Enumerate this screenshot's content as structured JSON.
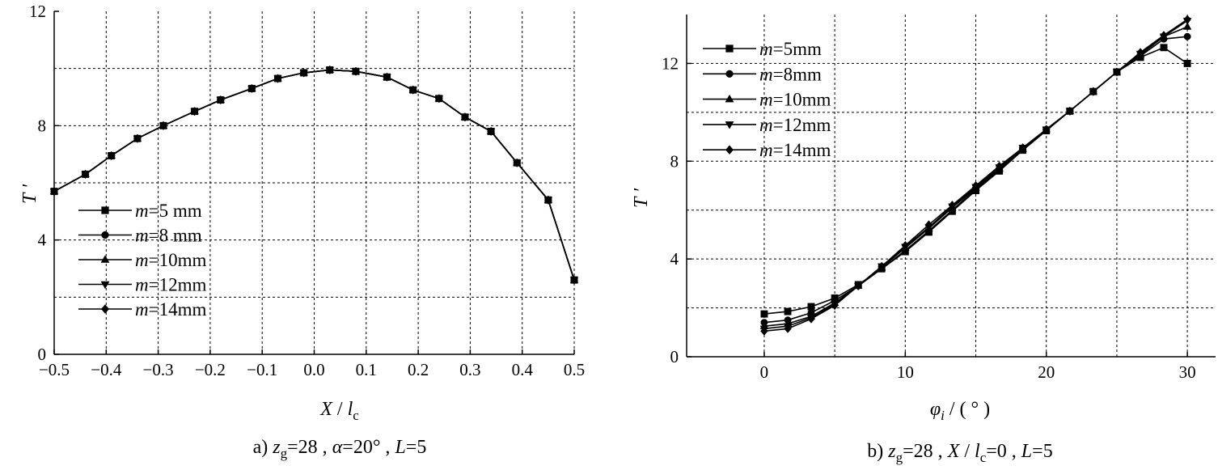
{
  "chart_data": [
    {
      "id": "a",
      "type": "line",
      "caption": {
        "prefix": "a) ",
        "z": "z",
        "sub": "g",
        "rest1": "=28 , ",
        "alpha": "α",
        "rest2": "=20° , ",
        "L": "L",
        "rest3": "=5"
      },
      "xlabel": {
        "var": "X",
        "sep": " / ",
        "den": "l",
        "sub": "c"
      },
      "ylabel": "T ′",
      "xlim": [
        -0.5,
        0.5
      ],
      "ylim": [
        0,
        12
      ],
      "xticks": [
        -0.5,
        -0.4,
        -0.3,
        -0.2,
        -0.1,
        0.0,
        0.1,
        0.2,
        0.3,
        0.4,
        0.5
      ],
      "xtick_labels": [
        "−0.5",
        "−0.4",
        "−0.3",
        "−0.2",
        "−0.1",
        "0.0",
        "0.1",
        "0.2",
        "0.3",
        "0.4",
        "0.5"
      ],
      "yticks": [
        0,
        4,
        8,
        12
      ],
      "ytick_labels": [
        "0",
        "4",
        "8",
        "12"
      ],
      "ygrid": [
        2,
        4,
        6,
        8,
        10
      ],
      "legend_position": "lower-left",
      "series": [
        {
          "name": "m=5mm",
          "m": "m",
          "label": "=5 mm",
          "marker": "square",
          "x": [
            -0.5,
            -0.44,
            -0.39,
            -0.34,
            -0.29,
            -0.23,
            -0.18,
            -0.12,
            -0.07,
            -0.02,
            0.03,
            0.08,
            0.14,
            0.19,
            0.24,
            0.29,
            0.34,
            0.39,
            0.45,
            0.5
          ],
          "y": [
            5.7,
            6.3,
            6.95,
            7.55,
            8.0,
            8.5,
            8.9,
            9.3,
            9.65,
            9.85,
            9.95,
            9.9,
            9.7,
            9.25,
            8.95,
            8.3,
            7.8,
            6.7,
            5.4,
            2.6
          ]
        },
        {
          "name": "m=8mm",
          "m": "m",
          "label": "=8 mm",
          "marker": "circle",
          "x": [
            -0.5,
            -0.44,
            -0.39,
            -0.34,
            -0.29,
            -0.23,
            -0.18,
            -0.12,
            -0.07,
            -0.02,
            0.03,
            0.08,
            0.14,
            0.19,
            0.24,
            0.29,
            0.34,
            0.39,
            0.45,
            0.5
          ],
          "y": [
            5.7,
            6.3,
            6.95,
            7.55,
            8.0,
            8.5,
            8.9,
            9.3,
            9.65,
            9.85,
            9.95,
            9.9,
            9.7,
            9.25,
            8.95,
            8.3,
            7.8,
            6.7,
            5.4,
            2.6
          ]
        },
        {
          "name": "m=10mm",
          "m": "m",
          "label": "=10mm",
          "marker": "triangle-up",
          "x": [
            -0.5,
            -0.44,
            -0.39,
            -0.34,
            -0.29,
            -0.23,
            -0.18,
            -0.12,
            -0.07,
            -0.02,
            0.03,
            0.08,
            0.14,
            0.19,
            0.24,
            0.29,
            0.34,
            0.39,
            0.45,
            0.5
          ],
          "y": [
            5.7,
            6.3,
            6.95,
            7.55,
            8.0,
            8.5,
            8.9,
            9.3,
            9.65,
            9.85,
            9.95,
            9.9,
            9.7,
            9.25,
            8.95,
            8.3,
            7.8,
            6.7,
            5.4,
            2.6
          ]
        },
        {
          "name": "m=12mm",
          "m": "m",
          "label": "=12mm",
          "marker": "triangle-down",
          "x": [
            -0.5,
            -0.44,
            -0.39,
            -0.34,
            -0.29,
            -0.23,
            -0.18,
            -0.12,
            -0.07,
            -0.02,
            0.03,
            0.08,
            0.14,
            0.19,
            0.24,
            0.29,
            0.34,
            0.39,
            0.45,
            0.5
          ],
          "y": [
            5.7,
            6.3,
            6.95,
            7.55,
            8.0,
            8.5,
            8.9,
            9.3,
            9.65,
            9.85,
            9.95,
            9.9,
            9.7,
            9.25,
            8.95,
            8.3,
            7.8,
            6.7,
            5.4,
            2.6
          ]
        },
        {
          "name": "m=14mm",
          "m": "m",
          "label": "=14mm",
          "marker": "diamond",
          "x": [
            -0.5,
            -0.44,
            -0.39,
            -0.34,
            -0.29,
            -0.23,
            -0.18,
            -0.12,
            -0.07,
            -0.02,
            0.03,
            0.08,
            0.14,
            0.19,
            0.24,
            0.29,
            0.34,
            0.39,
            0.45,
            0.5
          ],
          "y": [
            5.7,
            6.3,
            6.95,
            7.55,
            8.0,
            8.5,
            8.9,
            9.3,
            9.65,
            9.85,
            9.95,
            9.9,
            9.7,
            9.25,
            8.95,
            8.3,
            7.8,
            6.7,
            5.4,
            2.6
          ]
        }
      ]
    },
    {
      "id": "b",
      "type": "line",
      "caption": {
        "prefix": "b) ",
        "z": "z",
        "sub": "g",
        "rest1": "=28 , ",
        "X": "X",
        "sep": " / ",
        "l": "l",
        "sub2": "c",
        "rest2": "=0 , ",
        "L": "L",
        "rest3": "=5"
      },
      "xlabel": {
        "var": "φ",
        "sub": "i",
        "rest": " / ( ° )"
      },
      "ylabel": "T ′",
      "xlim": [
        -5.5,
        32
      ],
      "ylim": [
        0,
        14
      ],
      "xticks": [
        0,
        10,
        20,
        30
      ],
      "xtick_labels": [
        "0",
        "10",
        "20",
        "30"
      ],
      "yticks": [
        0,
        4,
        8,
        12
      ],
      "ytick_labels": [
        "0",
        "4",
        "8",
        "12"
      ],
      "xgrid": [
        0,
        5,
        10,
        15,
        20,
        25,
        30
      ],
      "ygrid": [
        2,
        4,
        6,
        8,
        10,
        12
      ],
      "legend_position": "top-left",
      "series": [
        {
          "name": "m=5mm",
          "m": "m",
          "label": "=5mm",
          "marker": "square",
          "x": [
            0,
            1.67,
            3.33,
            5,
            6.67,
            8.33,
            10,
            11.67,
            13.33,
            15,
            16.67,
            18.33,
            20,
            21.67,
            23.33,
            25,
            26.67,
            28.33,
            30
          ],
          "y": [
            1.75,
            1.85,
            2.05,
            2.4,
            2.95,
            3.6,
            4.3,
            5.1,
            5.95,
            6.8,
            7.6,
            8.45,
            9.25,
            10.05,
            10.85,
            11.65,
            12.25,
            12.65,
            12.0
          ]
        },
        {
          "name": "m=8mm",
          "m": "m",
          "label": "=8mm",
          "marker": "circle",
          "x": [
            0,
            1.67,
            3.33,
            5,
            6.67,
            8.33,
            10,
            11.67,
            13.33,
            15,
            16.67,
            18.33,
            20,
            21.67,
            23.33,
            25,
            26.67,
            28.33,
            30
          ],
          "y": [
            1.4,
            1.5,
            1.8,
            2.3,
            2.9,
            3.6,
            4.35,
            5.15,
            6.0,
            6.85,
            7.65,
            8.5,
            9.3,
            10.05,
            10.85,
            11.65,
            12.3,
            13.0,
            13.1
          ]
        },
        {
          "name": "m=10mm",
          "m": "m",
          "label": "=10mm",
          "marker": "triangle-up",
          "x": [
            0,
            1.67,
            3.33,
            5,
            6.67,
            8.33,
            10,
            11.67,
            13.33,
            15,
            16.67,
            18.33,
            20,
            21.67,
            23.33,
            25,
            26.67,
            28.33,
            30
          ],
          "y": [
            1.25,
            1.35,
            1.65,
            2.2,
            2.9,
            3.65,
            4.45,
            5.25,
            6.1,
            6.9,
            7.7,
            8.5,
            9.3,
            10.05,
            10.85,
            11.65,
            12.35,
            13.1,
            13.5
          ]
        },
        {
          "name": "m=12mm",
          "m": "m",
          "label": "=12mm",
          "marker": "triangle-down",
          "x": [
            0,
            1.67,
            3.33,
            5,
            6.67,
            8.33,
            10,
            11.67,
            13.33,
            15,
            16.67,
            18.33,
            20,
            21.67,
            23.33,
            25,
            26.67,
            28.33,
            30
          ],
          "y": [
            1.15,
            1.25,
            1.6,
            2.15,
            2.9,
            3.7,
            4.5,
            5.3,
            6.15,
            6.95,
            7.75,
            8.55,
            9.3,
            10.05,
            10.85,
            11.65,
            12.4,
            13.1,
            13.75
          ]
        },
        {
          "name": "m=14mm",
          "m": "m",
          "label": "=14mm",
          "marker": "diamond",
          "x": [
            0,
            1.67,
            3.33,
            5,
            6.67,
            8.33,
            10,
            11.67,
            13.33,
            15,
            16.67,
            18.33,
            20,
            21.67,
            23.33,
            25,
            26.67,
            28.33,
            30
          ],
          "y": [
            1.05,
            1.15,
            1.55,
            2.1,
            2.9,
            3.7,
            4.55,
            5.4,
            6.2,
            7.0,
            7.8,
            8.55,
            9.3,
            10.05,
            10.85,
            11.65,
            12.45,
            13.15,
            13.8
          ]
        }
      ]
    }
  ]
}
